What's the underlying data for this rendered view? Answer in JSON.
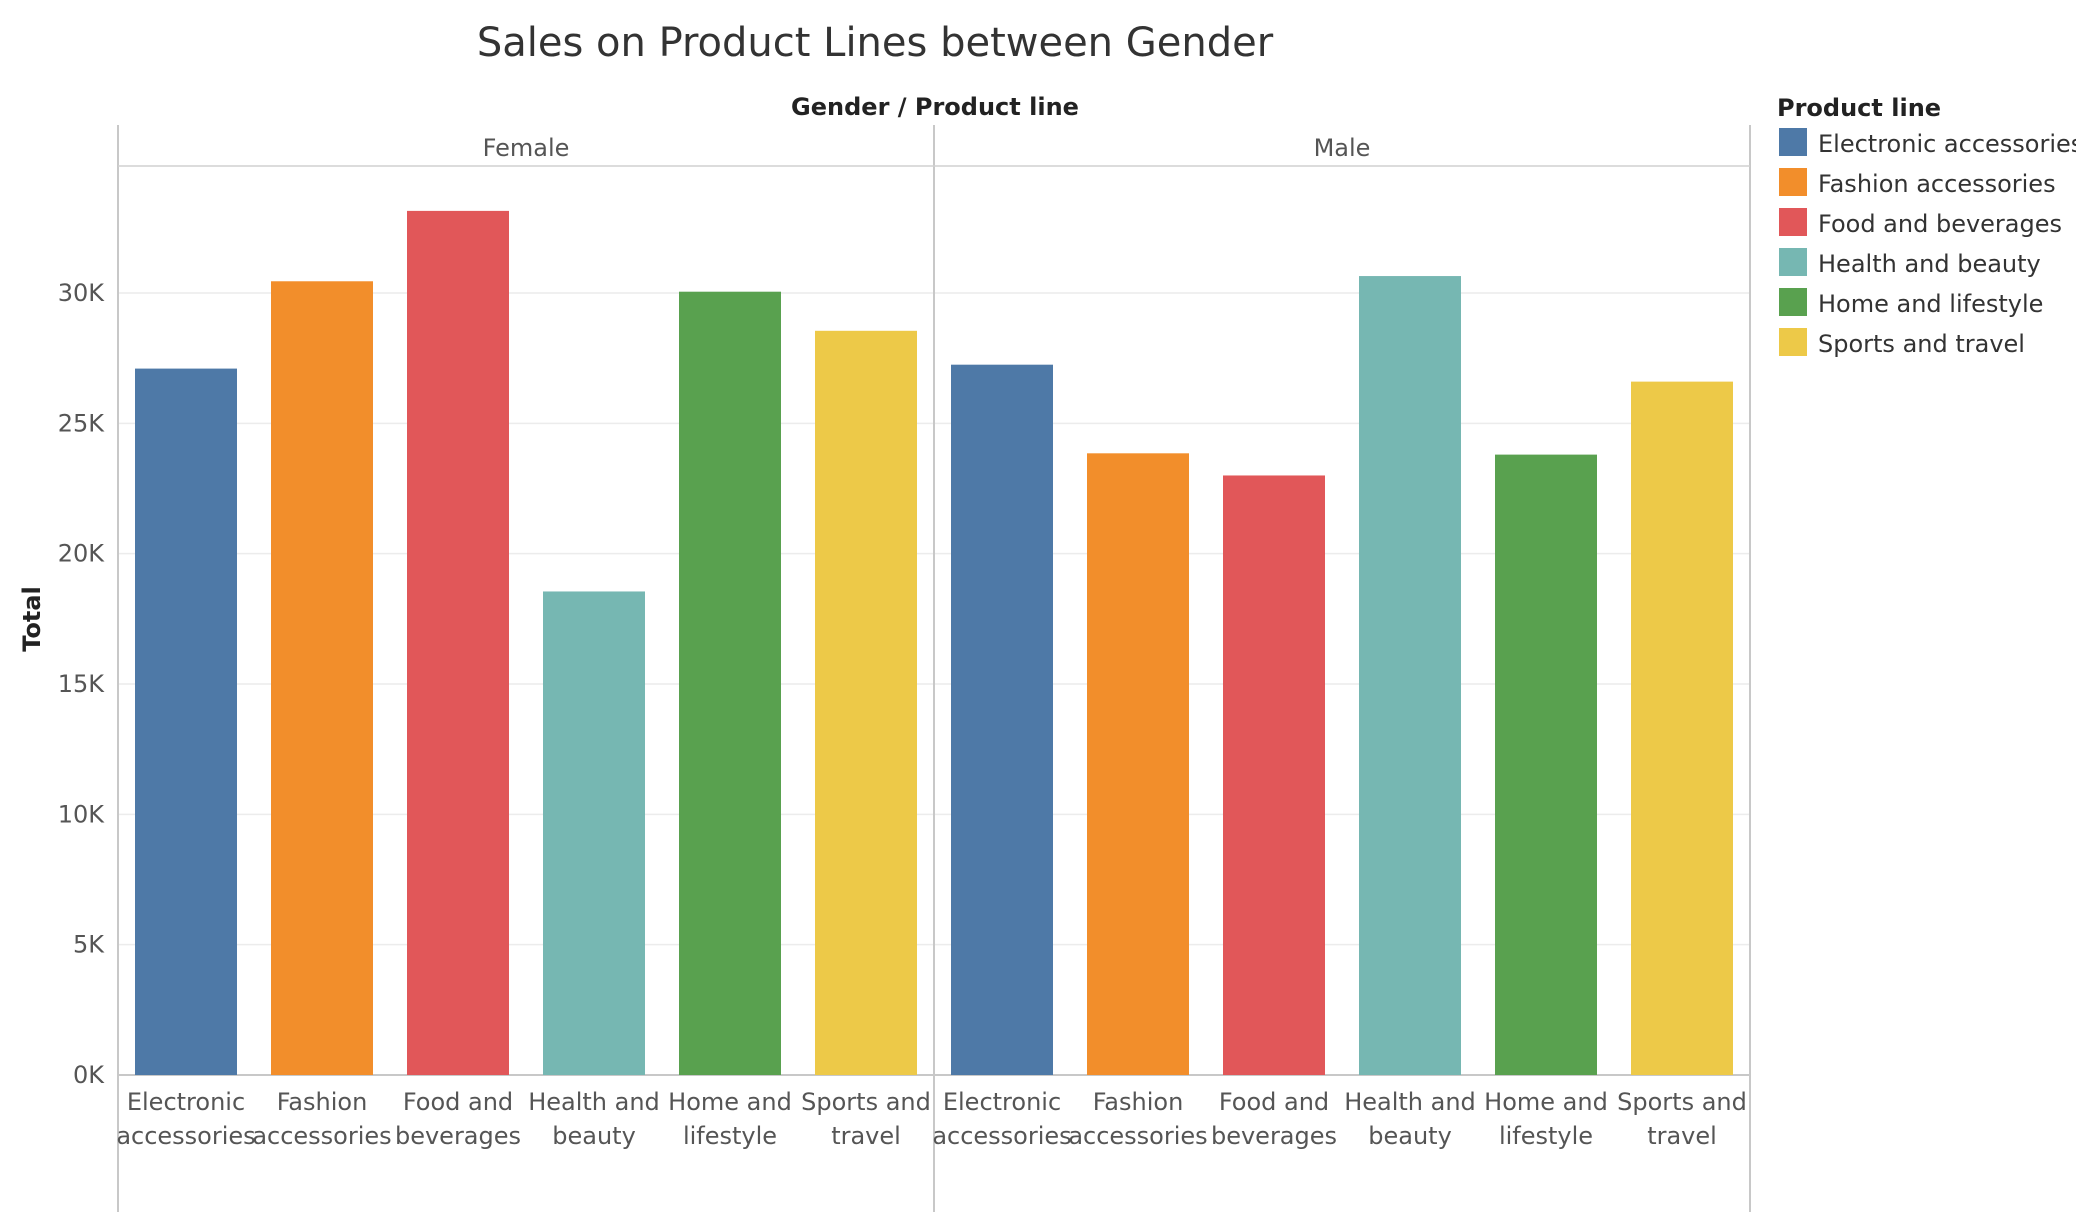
{
  "chart_data": {
    "type": "bar",
    "title": "Sales on Product Lines between Gender",
    "header": "Gender / Product line",
    "ylabel": "Total",
    "ylim": [
      0,
      35000
    ],
    "y_ticks": [
      0,
      5000,
      10000,
      15000,
      20000,
      25000,
      30000
    ],
    "y_tick_labels": [
      "0K",
      "5K",
      "10K",
      "15K",
      "20K",
      "25K",
      "30K"
    ],
    "grid": true,
    "legend": {
      "title": "Product line",
      "placement": "right",
      "items": [
        {
          "label": "Electronic accessories",
          "color": "#4e79a7"
        },
        {
          "label": "Fashion accessories",
          "color": "#f28e2b"
        },
        {
          "label": "Food and beverages",
          "color": "#e15759"
        },
        {
          "label": "Health and beauty",
          "color": "#76b7b2"
        },
        {
          "label": "Home and lifestyle",
          "color": "#59a14f"
        },
        {
          "label": "Sports and travel",
          "color": "#edc948"
        }
      ]
    },
    "panels": [
      {
        "name": "Female",
        "categories": [
          {
            "line1": "Electronic",
            "line2": "accessories",
            "value": 27100
          },
          {
            "line1": "Fashion",
            "line2": "accessories",
            "value": 30450
          },
          {
            "line1": "Food and",
            "line2": "beverages",
            "value": 33150
          },
          {
            "line1": "Health and",
            "line2": "beauty",
            "value": 18550
          },
          {
            "line1": "Home and",
            "line2": "lifestyle",
            "value": 30050
          },
          {
            "line1": "Sports and",
            "line2": "travel",
            "value": 28550
          }
        ]
      },
      {
        "name": "Male",
        "categories": [
          {
            "line1": "Electronic",
            "line2": "accessories",
            "value": 27250
          },
          {
            "line1": "Fashion",
            "line2": "accessories",
            "value": 23850
          },
          {
            "line1": "Food and",
            "line2": "beverages",
            "value": 23000
          },
          {
            "line1": "Health and",
            "line2": "beauty",
            "value": 30650
          },
          {
            "line1": "Home and",
            "line2": "lifestyle",
            "value": 23800
          },
          {
            "line1": "Sports and",
            "line2": "travel",
            "value": 26600
          }
        ]
      }
    ]
  }
}
